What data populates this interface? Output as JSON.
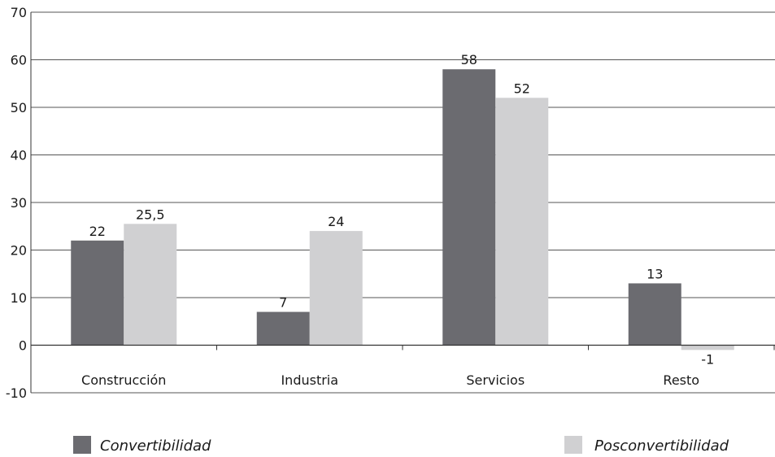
{
  "chart_data": {
    "type": "bar",
    "title": "",
    "xlabel": "",
    "ylabel": "",
    "categories": [
      "Construcción",
      "Industria",
      "Servicios",
      "Resto"
    ],
    "series": [
      {
        "name": "Convertibilidad",
        "values": [
          22,
          7,
          58,
          13
        ],
        "labels": [
          "22",
          "7",
          "58",
          "13"
        ],
        "color": "#6b6b70"
      },
      {
        "name": "Posconvertibilidad",
        "values": [
          25.5,
          24,
          52,
          -1
        ],
        "labels": [
          "25,5",
          "24",
          "52",
          "-1"
        ],
        "color": "#d0d0d2"
      }
    ],
    "ylim": [
      -10,
      70
    ],
    "yticks": [
      "-10",
      "0",
      "10",
      "20",
      "30",
      "40",
      "50",
      "60",
      "70"
    ],
    "grid": true,
    "legend_position": "bottom"
  }
}
